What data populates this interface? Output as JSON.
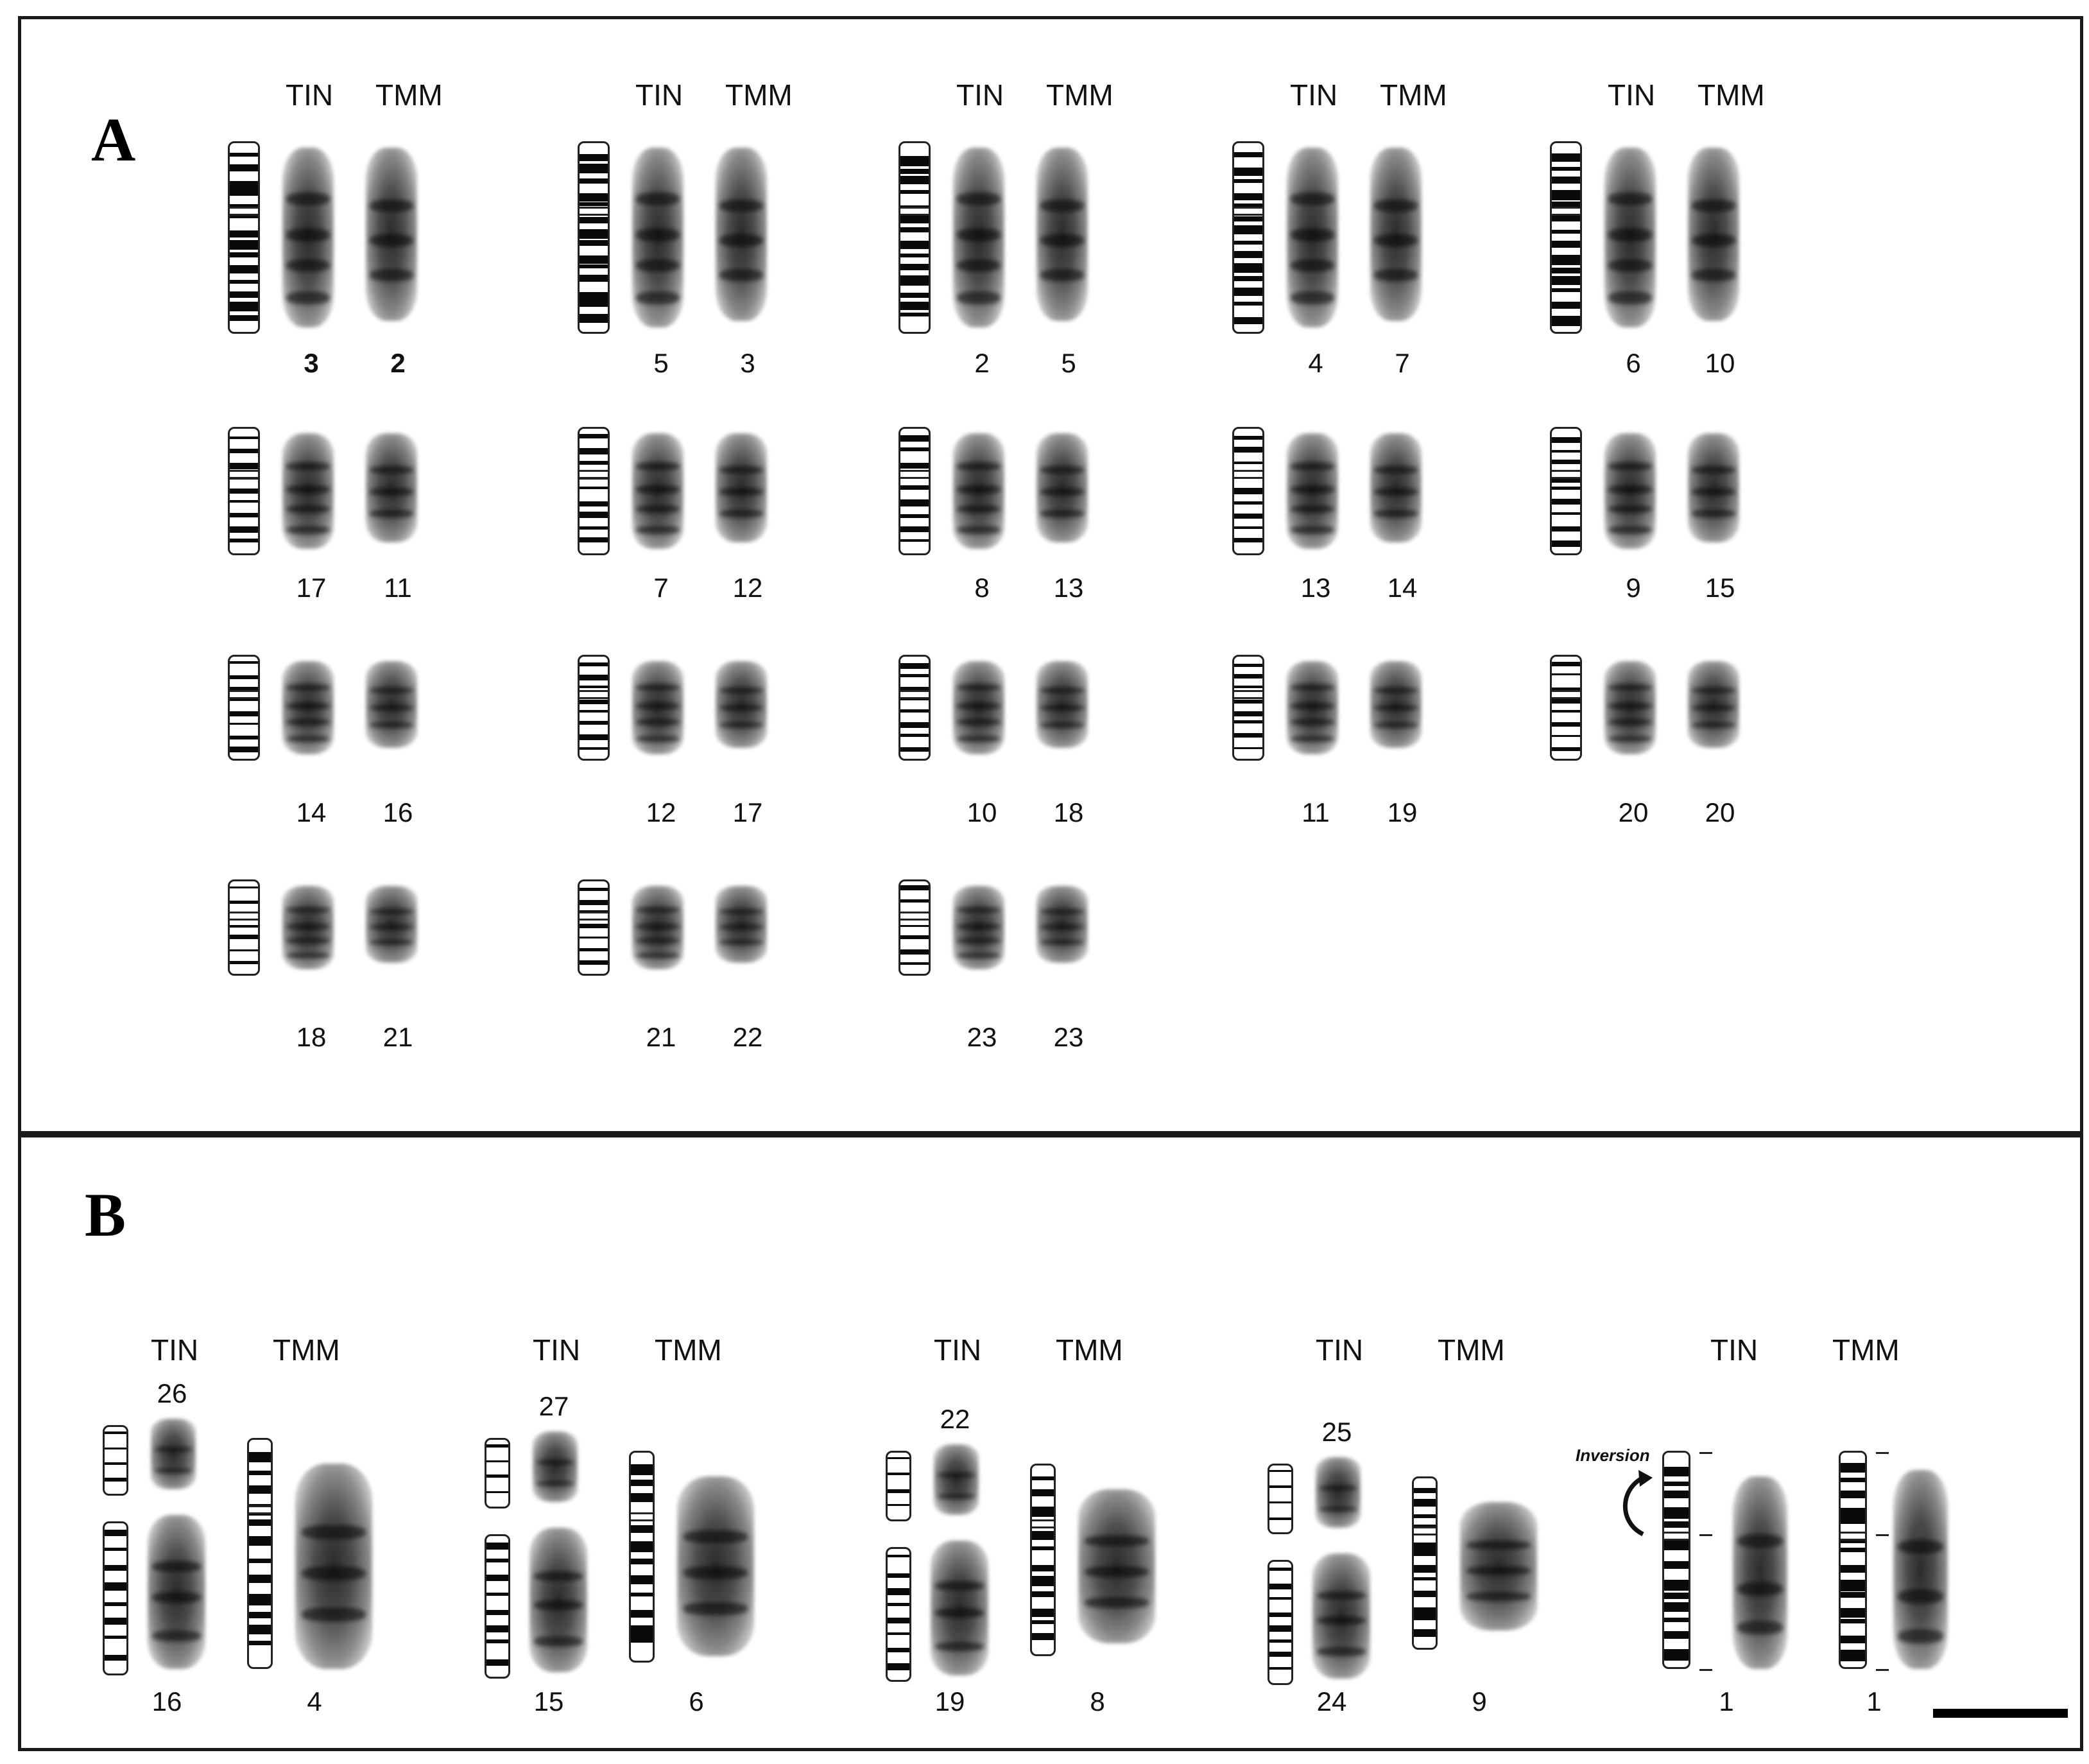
{
  "panel_a": {
    "letter": "A",
    "tin_label": "TIN",
    "tmm_label": "TMM",
    "pairs": [
      {
        "tin": "3",
        "tmm": "2"
      },
      {
        "tin": "5",
        "tmm": "3"
      },
      {
        "tin": "2",
        "tmm": "5"
      },
      {
        "tin": "4",
        "tmm": "7"
      },
      {
        "tin": "6",
        "tmm": "10"
      },
      {
        "tin": "17",
        "tmm": "11"
      },
      {
        "tin": "7",
        "tmm": "12"
      },
      {
        "tin": "8",
        "tmm": "13"
      },
      {
        "tin": "13",
        "tmm": "14"
      },
      {
        "tin": "9",
        "tmm": "15"
      },
      {
        "tin": "14",
        "tmm": "16"
      },
      {
        "tin": "12",
        "tmm": "17"
      },
      {
        "tin": "10",
        "tmm": "18"
      },
      {
        "tin": "11",
        "tmm": "19"
      },
      {
        "tin": "20",
        "tmm": "20"
      },
      {
        "tin": "18",
        "tmm": "21"
      },
      {
        "tin": "21",
        "tmm": "22"
      },
      {
        "tin": "23",
        "tmm": "23"
      }
    ]
  },
  "panel_b": {
    "letter": "B",
    "tin_label": "TIN",
    "tmm_label": "TMM",
    "inversion_label": "Inversion",
    "pairs": [
      {
        "tin_top": "26",
        "tin_bottom": "16",
        "tmm": "4"
      },
      {
        "tin_top": "27",
        "tin_bottom": "15",
        "tmm": "6"
      },
      {
        "tin_top": "22",
        "tin_bottom": "19",
        "tmm": "8"
      },
      {
        "tin_top": "25",
        "tin_bottom": "24",
        "tmm": "9"
      },
      {
        "tin_top": "",
        "tin_bottom": "1",
        "tmm": "1"
      }
    ]
  }
}
